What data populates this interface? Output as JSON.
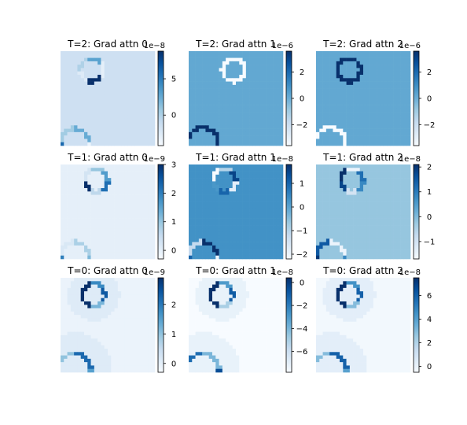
{
  "chart_data": [
    {
      "type": "heatmap",
      "title": "T=2: Grad attn 0",
      "colorbar": {
        "multiplier": "1e−8",
        "ticks": [
          {
            "label": "5",
            "value": 5
          },
          {
            "label": "0",
            "value": 0
          }
        ],
        "range": [
          -4.2,
          8.8
        ]
      },
      "colormap": "Blues",
      "base_value": -1.5,
      "regions": [
        {
          "kind": "ring",
          "center": [
            0.33,
            0.2
          ],
          "radius": 0.12,
          "values": [
            0.0,
            3.0,
            -3.0,
            8.8,
            -2.5
          ]
        },
        {
          "kind": "arc",
          "center": [
            0.15,
            0.97
          ],
          "radius": 0.15,
          "values": [
            0.5,
            2.5,
            -3.5,
            6.0
          ]
        }
      ]
    },
    {
      "type": "heatmap",
      "title": "T=2: Grad attn 1",
      "colorbar": {
        "multiplier": "1e−6",
        "ticks": [
          {
            "label": "2",
            "value": 2
          },
          {
            "label": "0",
            "value": 0
          },
          {
            "label": "−2",
            "value": -2
          }
        ],
        "range": [
          -3.6,
          3.6
        ]
      },
      "colormap": "Blues",
      "base_value": 0.2,
      "regions": [
        {
          "kind": "ring",
          "center": [
            0.48,
            0.2
          ],
          "radius": 0.12,
          "values": [
            -3.6
          ]
        },
        {
          "kind": "arc",
          "center": [
            0.15,
            0.97
          ],
          "radius": 0.16,
          "values": [
            3.6
          ]
        }
      ]
    },
    {
      "type": "heatmap",
      "title": "T=2: Grad attn 2",
      "colorbar": {
        "multiplier": "1e−6",
        "ticks": [
          {
            "label": "2",
            "value": 2
          },
          {
            "label": "0",
            "value": 0
          },
          {
            "label": "−2",
            "value": -2
          }
        ],
        "range": [
          -3.6,
          3.6
        ]
      },
      "colormap": "Blues",
      "base_value": 0.2,
      "regions": [
        {
          "kind": "ring",
          "center": [
            0.35,
            0.2
          ],
          "radius": 0.12,
          "values": [
            3.6
          ]
        },
        {
          "kind": "arc",
          "center": [
            0.15,
            0.97
          ],
          "radius": 0.16,
          "values": [
            -3.6
          ]
        }
      ]
    },
    {
      "type": "heatmap",
      "title": "T=1: Grad attn 0",
      "colorbar": {
        "multiplier": "1e−9",
        "ticks": [
          {
            "label": "3",
            "value": 3
          },
          {
            "label": "2",
            "value": 2
          },
          {
            "label": "1",
            "value": 1
          },
          {
            "label": "0",
            "value": 0
          }
        ],
        "range": [
          -0.3,
          3.0
        ]
      },
      "colormap": "Blues",
      "base_value": 0.0,
      "regions": [
        {
          "kind": "ring",
          "center": [
            0.38,
            0.17
          ],
          "radius": 0.12,
          "values": [
            0.3,
            1.0,
            1.6,
            2.2,
            0.6,
            3.0
          ]
        },
        {
          "kind": "arc",
          "center": [
            0.15,
            0.97
          ],
          "radius": 0.15,
          "values": [
            0.2,
            0.8,
            1.2,
            2.0
          ]
        }
      ]
    },
    {
      "type": "heatmap",
      "title": "T=1: Grad attn 1",
      "colorbar": {
        "multiplier": "1e−8",
        "ticks": [
          {
            "label": "1",
            "value": 1
          },
          {
            "label": "0",
            "value": 0
          },
          {
            "label": "−1",
            "value": -1
          },
          {
            "label": "−2",
            "value": -2
          }
        ],
        "range": [
          -2.2,
          1.8
        ]
      },
      "colormap": "Blues",
      "base_value": 0.3,
      "regions": [
        {
          "kind": "ring",
          "center": [
            0.38,
            0.17
          ],
          "radius": 0.12,
          "values": [
            -2.2,
            -1.0,
            1.5,
            -1.8,
            1.0,
            0.2
          ]
        },
        {
          "kind": "arc",
          "center": [
            0.15,
            0.97
          ],
          "radius": 0.15,
          "values": [
            -1.2,
            1.8,
            -2.0,
            1.0
          ]
        }
      ]
    },
    {
      "type": "heatmap",
      "title": "T=1: Grad attn 2",
      "colorbar": {
        "multiplier": "1e−8",
        "ticks": [
          {
            "label": "2",
            "value": 2
          },
          {
            "label": "1",
            "value": 1
          },
          {
            "label": "0",
            "value": 0
          },
          {
            "label": "−1",
            "value": -1
          }
        ],
        "range": [
          -1.7,
          2.1
        ]
      },
      "colormap": "Blues",
      "base_value": -0.2,
      "regions": [
        {
          "kind": "ring",
          "center": [
            0.38,
            0.17
          ],
          "radius": 0.12,
          "values": [
            2.1,
            -1.5,
            1.2,
            0.8,
            -1.0,
            1.8
          ]
        },
        {
          "kind": "arc",
          "center": [
            0.15,
            0.97
          ],
          "radius": 0.15,
          "values": [
            1.5,
            -1.5,
            0.8,
            2.0
          ]
        }
      ]
    },
    {
      "type": "heatmap",
      "title": "T=0: Grad attn 0",
      "colorbar": {
        "multiplier": "1e−9",
        "ticks": [
          {
            "label": "2",
            "value": 2
          },
          {
            "label": "1",
            "value": 1
          },
          {
            "label": "0",
            "value": 0
          }
        ],
        "range": [
          -0.3,
          2.9
        ]
      },
      "colormap": "Blues",
      "base_value": -0.1,
      "halo": {
        "radius_scale": 2.3,
        "value": 0.1
      },
      "regions": [
        {
          "kind": "ring",
          "center": [
            0.35,
            0.18
          ],
          "radius": 0.12,
          "values": [
            2.9,
            1.8,
            2.4,
            1.2,
            2.9
          ]
        },
        {
          "kind": "arc",
          "center": [
            0.15,
            0.97
          ],
          "radius": 0.17,
          "values": [
            1.0,
            2.2,
            1.5,
            2.9
          ]
        }
      ]
    },
    {
      "type": "heatmap",
      "title": "T=0: Grad attn 1",
      "colorbar": {
        "multiplier": "1e−8",
        "ticks": [
          {
            "label": "0",
            "value": 0
          },
          {
            "label": "−2",
            "value": -2
          },
          {
            "label": "−4",
            "value": -4
          },
          {
            "label": "−6",
            "value": -6
          }
        ],
        "range": [
          -7.8,
          0.4
        ]
      },
      "colormap": "Blues",
      "base_value": -7.8,
      "halo": {
        "radius_scale": 2.3,
        "value": -7.2
      },
      "regions": [
        {
          "kind": "ring",
          "center": [
            0.35,
            0.18
          ],
          "radius": 0.12,
          "values": [
            0.4,
            -3.0,
            -1.0,
            -5.0,
            0.4
          ]
        },
        {
          "kind": "arc",
          "center": [
            0.15,
            0.97
          ],
          "radius": 0.17,
          "values": [
            -1.5,
            -4.0,
            -0.5,
            -3.0
          ]
        }
      ]
    },
    {
      "type": "heatmap",
      "title": "T=0: Grad attn 2",
      "colorbar": {
        "multiplier": "1e−8",
        "ticks": [
          {
            "label": "6",
            "value": 6
          },
          {
            "label": "4",
            "value": 4
          },
          {
            "label": "2",
            "value": 2
          },
          {
            "label": "0",
            "value": 0
          }
        ],
        "range": [
          -0.5,
          7.5
        ]
      },
      "colormap": "Blues",
      "base_value": -0.3,
      "halo": {
        "radius_scale": 2.3,
        "value": 0.3
      },
      "regions": [
        {
          "kind": "ring",
          "center": [
            0.35,
            0.18
          ],
          "radius": 0.12,
          "values": [
            7.5,
            4.5,
            6.0,
            3.0,
            7.5
          ]
        },
        {
          "kind": "arc",
          "center": [
            0.15,
            0.97
          ],
          "radius": 0.17,
          "values": [
            3.0,
            6.0,
            4.0,
            7.5
          ]
        }
      ]
    }
  ]
}
